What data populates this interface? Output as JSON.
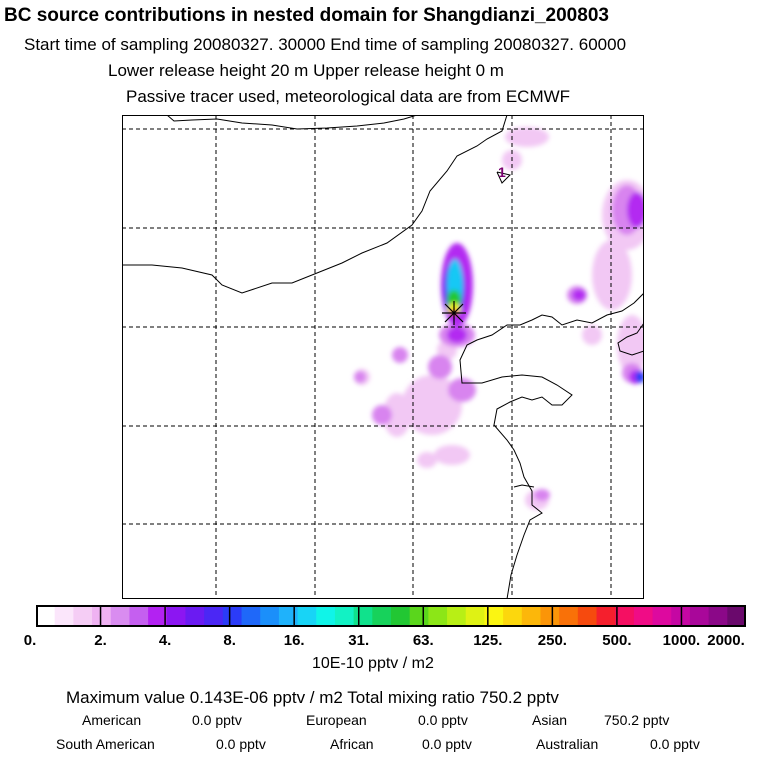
{
  "header": {
    "title": "BC  source contributions in nested domain for Shangdianzi_200803",
    "sampling": "Start time of sampling 20080327. 30000     End time of sampling 20080327. 60000",
    "release": "Lower release height   20 m          Upper release height    0 m",
    "note": "Passive tracer used, meteorological data are from ECMWF"
  },
  "map": {
    "contour_label": "1",
    "receptor_marker": "star-marker"
  },
  "colorbar": {
    "ticks": [
      "0.",
      "2.",
      "4.",
      "8.",
      "16.",
      "31.",
      "63.",
      "125.",
      "250.",
      "500.",
      "1000.",
      "2000."
    ],
    "colors": [
      "#ffffff",
      "#fbe6fb",
      "#f5cdf5",
      "#efb2f2",
      "#d98cf0",
      "#c55ff0",
      "#b322f2",
      "#8c16f2",
      "#6b1bf2",
      "#4b27f5",
      "#2b3cf8",
      "#1f68f9",
      "#1b8ffa",
      "#1fb2fb",
      "#18d4f6",
      "#10f4e8",
      "#12f2c4",
      "#10e28c",
      "#17d25b",
      "#22c733",
      "#5ad61c",
      "#8ce617",
      "#b8ef15",
      "#dff214",
      "#fbf512",
      "#fcd70d",
      "#fcb70a",
      "#fb9508",
      "#f97108",
      "#f64a0e",
      "#f51f2d",
      "#f50f62",
      "#f00c86",
      "#dd099f",
      "#c507a3",
      "#a9079a",
      "#8b0888",
      "#6a096c"
    ],
    "unit": "10E-10 pptv / m2"
  },
  "summary": {
    "max_line": "Maximum value  0.143E-06 pptv / m2     Total mixing ratio      750.2 pptv",
    "regions": [
      {
        "name": "American",
        "value": "0.0 pptv"
      },
      {
        "name": "European",
        "value": "0.0 pptv"
      },
      {
        "name": "Asian",
        "value": "750.2 pptv"
      },
      {
        "name": "South American",
        "value": "0.0 pptv"
      },
      {
        "name": "African",
        "value": "0.0 pptv"
      },
      {
        "name": "Australian",
        "value": "0.0 pptv"
      }
    ]
  }
}
